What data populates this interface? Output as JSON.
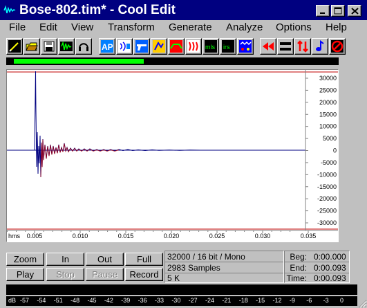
{
  "window": {
    "title": "Bose-802.tim* - Cool Edit",
    "minimize": "_",
    "maximize": "□",
    "close": "✕"
  },
  "menu": [
    "File",
    "Edit",
    "View",
    "Transform",
    "Generate",
    "Analyze",
    "Options",
    "Help"
  ],
  "toolbar": {
    "icons": [
      "edit-view-icon",
      "open-file-icon",
      "save-icon",
      "cd-track-icon",
      "headphones-icon",
      "amplify-icon",
      "noise-icon",
      "gun-icon",
      "flange-icon",
      "envelope-icon",
      "brainwave-icon",
      "mls-icon",
      "irs-icon",
      "stereo-field-icon",
      "rewind-icon",
      "invert-icon",
      "reverse-icon",
      "music-note-icon",
      "no-icon"
    ],
    "mls_label": "mls",
    "irs_label": "irs",
    "ap_label": "AP"
  },
  "overview": {
    "visible_fraction": 0.4
  },
  "waveform": {
    "y_ticks": [
      "30000",
      "25000",
      "20000",
      "15000",
      "10000",
      "5000",
      "0",
      "-5000",
      "-10000",
      "-15000",
      "-20000",
      "-25000",
      "-30000"
    ],
    "x_unit": "hms",
    "x_ticks": [
      "0.005",
      "0.010",
      "0.015",
      "0.020",
      "0.025",
      "0.030",
      "0.035"
    ]
  },
  "controls": {
    "zoom": "Zoom",
    "in": "In",
    "out": "Out",
    "full": "Full",
    "play": "Play",
    "stop": "Stop",
    "pause": "Pause",
    "record": "Record"
  },
  "info": {
    "format": "32000 / 16 bit / Mono",
    "samples": "2983 Samples",
    "size": "5 K",
    "beg_label": "Beg:",
    "beg_value": "0:00.000",
    "end_label": "End:",
    "end_value": "0:00.093",
    "time_label": "Time:",
    "time_value": "0:00.093"
  },
  "level_meter": {
    "unit": "dB",
    "ticks": [
      "-57",
      "-54",
      "-51",
      "-48",
      "-45",
      "-42",
      "-39",
      "-36",
      "-33",
      "-30",
      "-27",
      "-24",
      "-21",
      "-18",
      "-15",
      "-12",
      "-9",
      "-6",
      "-3",
      "0"
    ]
  },
  "colors": {
    "titlebar": "#000080",
    "waveform": "#000080",
    "envelope": "#c00000",
    "overview_fill": "#00ff00"
  }
}
